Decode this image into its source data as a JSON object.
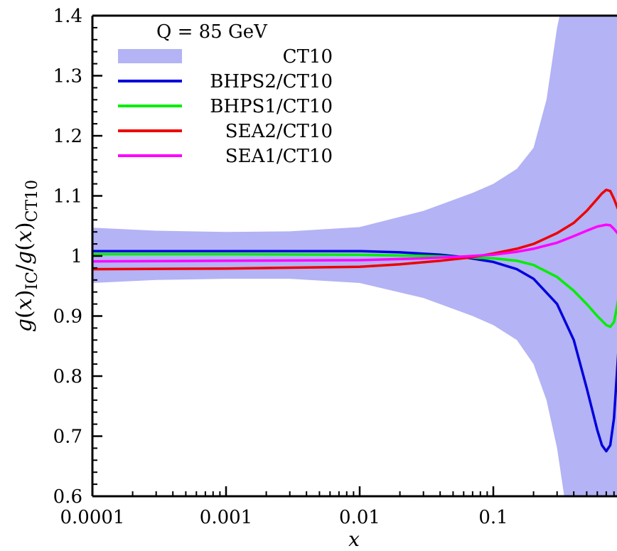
{
  "chart_data": {
    "type": "area",
    "title": "",
    "annotation": "Q = 85 GeV",
    "xlabel": "x",
    "ylabel": "g(x)_IC/g(x)_CT10",
    "xscale": "log",
    "xlim": [
      0.0001,
      0.9
    ],
    "ylim": [
      0.6,
      1.4
    ],
    "xticks": [
      0.0001,
      0.001,
      0.01,
      0.1
    ],
    "xtick_labels": [
      "0.0001",
      "0.001",
      "0.01",
      "0.1"
    ],
    "yticks": [
      0.6,
      0.7,
      0.8,
      0.9,
      1.0,
      1.1,
      1.2,
      1.3,
      1.4
    ],
    "ytick_labels": [
      "0.6",
      "0.7",
      "0.8",
      "0.9",
      "1",
      "1.1",
      "1.2",
      "1.3",
      "1.4"
    ],
    "legend_position": "top-left",
    "band": {
      "name": "CT10",
      "color": "#b3b3f5",
      "x": [
        0.0001,
        0.0003,
        0.001,
        0.003,
        0.01,
        0.03,
        0.07,
        0.1,
        0.15,
        0.2,
        0.25,
        0.3,
        0.35,
        0.45,
        0.6,
        0.8,
        0.9
      ],
      "upper": [
        1.047,
        1.042,
        1.04,
        1.041,
        1.048,
        1.075,
        1.105,
        1.12,
        1.145,
        1.18,
        1.26,
        1.38,
        1.45,
        1.45,
        1.45,
        1.45,
        1.45
      ],
      "lower": [
        0.955,
        0.96,
        0.962,
        0.962,
        0.955,
        0.93,
        0.9,
        0.885,
        0.86,
        0.82,
        0.76,
        0.68,
        0.58,
        0.55,
        0.55,
        0.55,
        0.55
      ]
    },
    "series": [
      {
        "name": "BHPS2/CT10",
        "color": "#0000dd",
        "x": [
          0.0001,
          0.001,
          0.01,
          0.02,
          0.04,
          0.06,
          0.1,
          0.15,
          0.2,
          0.3,
          0.4,
          0.5,
          0.6,
          0.65,
          0.7,
          0.75,
          0.8,
          0.85,
          0.9
        ],
        "y": [
          1.008,
          1.008,
          1.008,
          1.006,
          1.002,
          0.998,
          0.99,
          0.978,
          0.962,
          0.92,
          0.86,
          0.78,
          0.71,
          0.685,
          0.675,
          0.685,
          0.73,
          0.82,
          0.9
        ]
      },
      {
        "name": "BHPS1/CT10",
        "color": "#00ee00",
        "x": [
          0.0001,
          0.001,
          0.01,
          0.03,
          0.06,
          0.1,
          0.15,
          0.2,
          0.3,
          0.4,
          0.5,
          0.6,
          0.7,
          0.75,
          0.8,
          0.85,
          0.9
        ],
        "y": [
          1.003,
          1.003,
          1.002,
          1.0,
          0.998,
          0.996,
          0.992,
          0.985,
          0.965,
          0.942,
          0.92,
          0.9,
          0.885,
          0.882,
          0.89,
          0.92,
          0.955
        ]
      },
      {
        "name": "SEA2/CT10",
        "color": "#ee0000",
        "x": [
          0.0001,
          0.001,
          0.01,
          0.02,
          0.04,
          0.07,
          0.1,
          0.15,
          0.2,
          0.3,
          0.4,
          0.5,
          0.6,
          0.65,
          0.7,
          0.75,
          0.8,
          0.85,
          0.9
        ],
        "y": [
          0.978,
          0.979,
          0.982,
          0.986,
          0.992,
          0.998,
          1.004,
          1.012,
          1.02,
          1.038,
          1.055,
          1.075,
          1.095,
          1.104,
          1.11,
          1.108,
          1.095,
          1.08,
          1.07
        ]
      },
      {
        "name": "SEA1/CT10",
        "color": "#ff00ff",
        "x": [
          0.0001,
          0.001,
          0.01,
          0.03,
          0.06,
          0.1,
          0.15,
          0.2,
          0.3,
          0.4,
          0.5,
          0.6,
          0.7,
          0.75,
          0.8,
          0.85,
          0.9
        ],
        "y": [
          0.991,
          0.992,
          0.993,
          0.996,
          0.999,
          1.002,
          1.007,
          1.012,
          1.022,
          1.033,
          1.042,
          1.049,
          1.052,
          1.051,
          1.045,
          1.038,
          1.033
        ]
      }
    ]
  }
}
